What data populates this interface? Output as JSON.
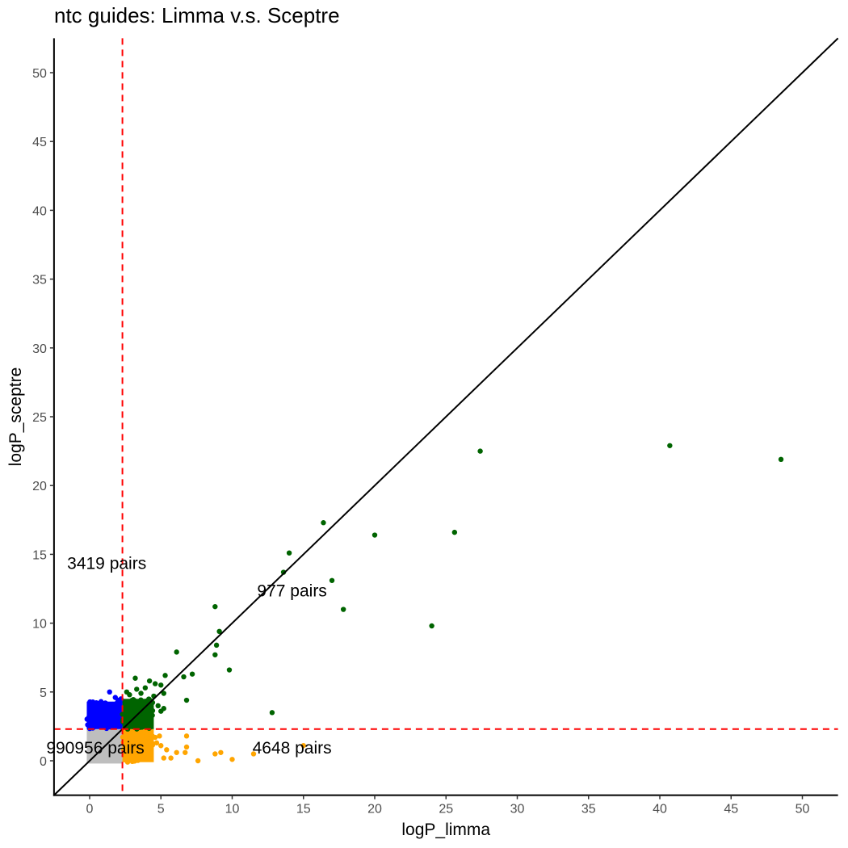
{
  "title": "ntc guides: Limma v.s. Sceptre",
  "colors": {
    "both_significant": "#006400",
    "sceptre_only": "#0000ff",
    "limma_only": "#ffa500",
    "neither": "#bebebe",
    "threshold_line": "#ff0000",
    "diagonal_line": "#000000"
  },
  "chart_data": {
    "type": "scatter",
    "title": "ntc guides: Limma v.s. Sceptre",
    "xlabel": "logP_limma",
    "ylabel": "logP_sceptre",
    "xlim": [
      -2.5,
      52.5
    ],
    "ylim": [
      -2.5,
      52.5
    ],
    "x_ticks": [
      0,
      5,
      10,
      15,
      20,
      25,
      30,
      35,
      40,
      45,
      50
    ],
    "y_ticks": [
      0,
      5,
      10,
      15,
      20,
      25,
      30,
      35,
      40,
      45,
      50
    ],
    "grid": false,
    "legend": "none",
    "reference_lines": {
      "diagonal": "y = x",
      "vertical_threshold_x": 2.3,
      "horizontal_threshold_y": 2.3
    },
    "annotations": [
      {
        "text": "3419 pairs",
        "x": 1.2,
        "y": 14.4,
        "quadrant": "sceptre_only"
      },
      {
        "text": "977 pairs",
        "x": 14.2,
        "y": 12.4,
        "quadrant": "both_significant"
      },
      {
        "text": "990956 pairs",
        "x": 0.4,
        "y": 1.0,
        "quadrant": "neither"
      },
      {
        "text": "4648 pairs",
        "x": 14.2,
        "y": 1.0,
        "quadrant": "limma_only"
      }
    ],
    "dense_regions": [
      {
        "group": "neither",
        "x_range": [
          -0.2,
          2.3
        ],
        "y_range": [
          -0.2,
          2.3
        ],
        "count": 990956
      },
      {
        "group": "sceptre_only",
        "x_range": [
          -0.2,
          2.3
        ],
        "y_range": [
          2.3,
          4.3
        ],
        "count": 3419
      },
      {
        "group": "limma_only",
        "x_range": [
          2.3,
          4.5
        ],
        "y_range": [
          -0.1,
          2.3
        ],
        "count": 4648
      },
      {
        "group": "both_significant",
        "x_range": [
          2.3,
          4.5
        ],
        "y_range": [
          2.3,
          4.5
        ],
        "count": 977
      }
    ],
    "series": [
      {
        "name": "both_significant",
        "color": "#006400",
        "points": [
          [
            48.5,
            21.9
          ],
          [
            40.7,
            22.9
          ],
          [
            27.4,
            22.5
          ],
          [
            25.6,
            16.6
          ],
          [
            24.0,
            9.8
          ],
          [
            20.0,
            16.4
          ],
          [
            17.8,
            11.0
          ],
          [
            17.0,
            13.1
          ],
          [
            16.4,
            17.3
          ],
          [
            14.0,
            15.1
          ],
          [
            13.6,
            13.7
          ],
          [
            12.8,
            3.5
          ],
          [
            9.8,
            6.6
          ],
          [
            9.1,
            9.4
          ],
          [
            8.9,
            8.4
          ],
          [
            8.8,
            11.2
          ],
          [
            8.8,
            7.7
          ],
          [
            7.2,
            6.3
          ],
          [
            6.8,
            4.4
          ],
          [
            6.6,
            6.1
          ],
          [
            6.1,
            7.9
          ],
          [
            5.3,
            6.2
          ],
          [
            5.2,
            3.8
          ],
          [
            5.2,
            4.9
          ],
          [
            5.0,
            5.5
          ],
          [
            4.6,
            5.6
          ],
          [
            4.5,
            4.7
          ],
          [
            4.4,
            3.3
          ],
          [
            4.2,
            5.8
          ],
          [
            3.9,
            5.3
          ],
          [
            3.6,
            4.9
          ],
          [
            3.3,
            5.2
          ],
          [
            3.2,
            6.0
          ],
          [
            3.0,
            4.4
          ],
          [
            2.8,
            4.8
          ],
          [
            2.6,
            5.0
          ],
          [
            4.8,
            4.0
          ],
          [
            5.0,
            3.6
          ],
          [
            4.0,
            2.6
          ],
          [
            3.7,
            3.1
          ]
        ]
      },
      {
        "name": "sceptre_only",
        "color": "#0000ff",
        "points": [
          [
            1.4,
            5.0
          ],
          [
            0.5,
            4.2
          ],
          [
            0.8,
            4.3
          ],
          [
            1.1,
            4.2
          ],
          [
            1.8,
            4.6
          ],
          [
            2.0,
            4.4
          ],
          [
            0.2,
            4.0
          ],
          [
            1.6,
            4.1
          ],
          [
            0.1,
            3.6
          ],
          [
            2.2,
            4.5
          ]
        ]
      },
      {
        "name": "limma_only",
        "color": "#ffa500",
        "points": [
          [
            15.0,
            1.1
          ],
          [
            11.5,
            0.5
          ],
          [
            10.0,
            0.1
          ],
          [
            9.2,
            0.6
          ],
          [
            8.8,
            0.5
          ],
          [
            7.6,
            0.0
          ],
          [
            6.8,
            1.8
          ],
          [
            6.8,
            1.0
          ],
          [
            6.7,
            0.6
          ],
          [
            6.1,
            0.6
          ],
          [
            5.7,
            0.2
          ],
          [
            5.4,
            0.8
          ],
          [
            5.2,
            0.2
          ],
          [
            5.0,
            1.1
          ],
          [
            4.9,
            1.8
          ],
          [
            4.7,
            1.3
          ],
          [
            4.6,
            1.7
          ],
          [
            4.4,
            1.8
          ],
          [
            4.3,
            1.4
          ],
          [
            4.0,
            0.5
          ]
        ]
      },
      {
        "name": "neither",
        "color": "#bebebe",
        "points": []
      }
    ]
  }
}
